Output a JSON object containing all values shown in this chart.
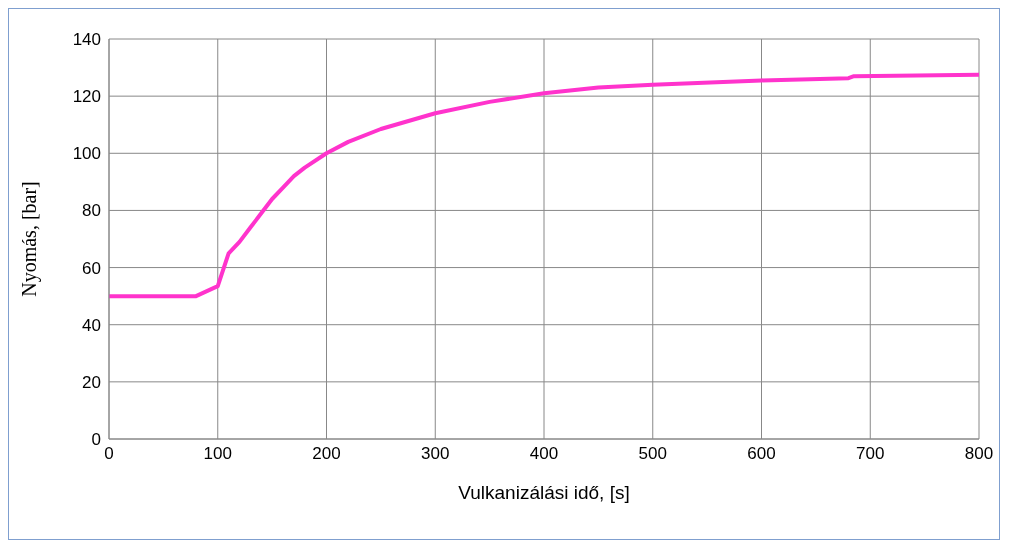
{
  "chart_data": {
    "type": "line",
    "xlabel": "Vulkanizálási idő, [s]",
    "ylabel": "Nyomás,  [bar]",
    "x": [
      0,
      40,
      80,
      100,
      110,
      120,
      130,
      140,
      150,
      160,
      170,
      180,
      200,
      220,
      250,
      300,
      350,
      400,
      450,
      500,
      600,
      680,
      685,
      800
    ],
    "series": [
      {
        "color": "#ff33cc",
        "values": [
          50,
          50,
          50,
          53.5,
          65,
          69,
          74,
          79,
          84,
          88,
          92,
          95,
          100,
          104,
          108.5,
          114,
          118,
          121,
          123,
          124,
          125.5,
          126.3,
          127,
          127.5
        ]
      }
    ],
    "xlim": [
      0,
      800
    ],
    "xticks": [
      0,
      100,
      200,
      300,
      400,
      500,
      600,
      700,
      800
    ],
    "ylim": [
      0,
      140
    ],
    "yticks": [
      0,
      20,
      40,
      60,
      80,
      100,
      120,
      140
    ],
    "grid": true,
    "legend": false,
    "marker": "none",
    "line_style": "solid"
  }
}
